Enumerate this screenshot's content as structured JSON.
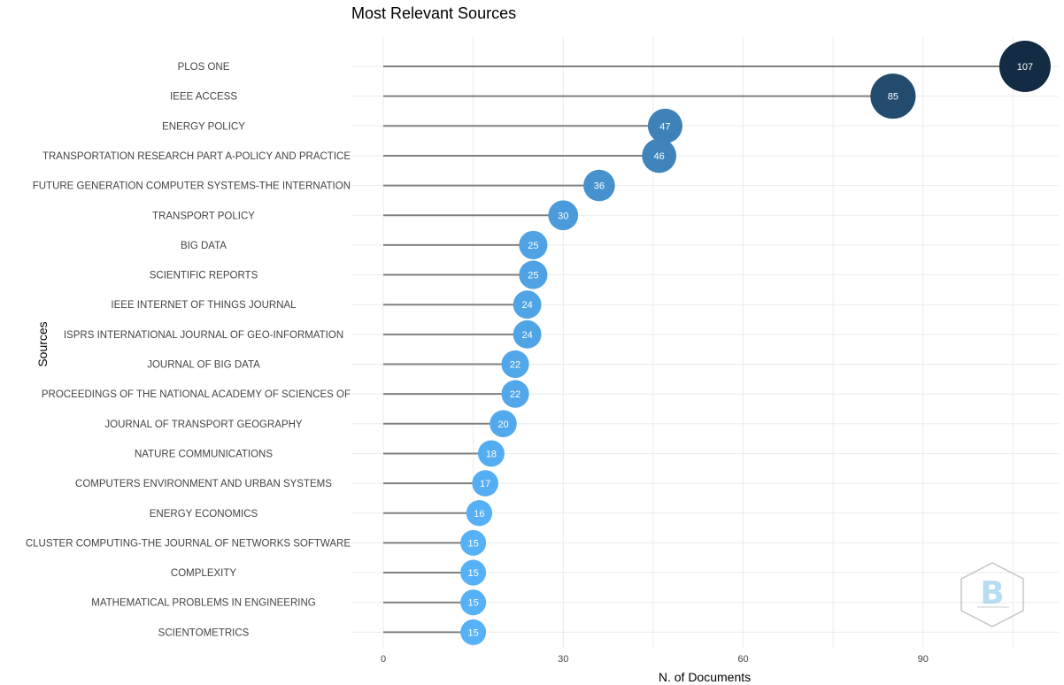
{
  "chart_data": {
    "type": "lollipop",
    "title": "Most Relevant Sources",
    "xlabel": "N. of Documents",
    "ylabel": "Sources",
    "xlim": [
      0,
      107
    ],
    "xticks": [
      0,
      30,
      60,
      90
    ],
    "grid": true,
    "categories": [
      "PLOS ONE",
      "IEEE ACCESS",
      "ENERGY POLICY",
      "TRANSPORTATION RESEARCH PART A-POLICY AND PRACTICE",
      "FUTURE GENERATION COMPUTER SYSTEMS-THE INTERNATION",
      "TRANSPORT POLICY",
      "BIG DATA",
      "SCIENTIFIC REPORTS",
      "IEEE INTERNET OF THINGS JOURNAL",
      "ISPRS INTERNATIONAL JOURNAL OF GEO-INFORMATION",
      "JOURNAL OF BIG DATA",
      "PROCEEDINGS OF THE NATIONAL ACADEMY OF SCIENCES OF",
      "JOURNAL OF TRANSPORT GEOGRAPHY",
      "NATURE COMMUNICATIONS",
      "COMPUTERS ENVIRONMENT AND URBAN SYSTEMS",
      "ENERGY ECONOMICS",
      "CLUSTER COMPUTING-THE JOURNAL OF NETWORKS SOFTWARE",
      "COMPLEXITY",
      "MATHEMATICAL PROBLEMS IN ENGINEERING",
      "SCIENTOMETRICS"
    ],
    "values": [
      107,
      85,
      47,
      46,
      36,
      30,
      25,
      25,
      24,
      24,
      22,
      22,
      20,
      18,
      17,
      16,
      15,
      15,
      15,
      15
    ],
    "colors": {
      "high": "#132b43",
      "low": "#56b1f7",
      "stem": "#808080",
      "grid": "#ebebeb"
    }
  },
  "watermark": {
    "icon": "bibliometrix-logo-icon"
  }
}
